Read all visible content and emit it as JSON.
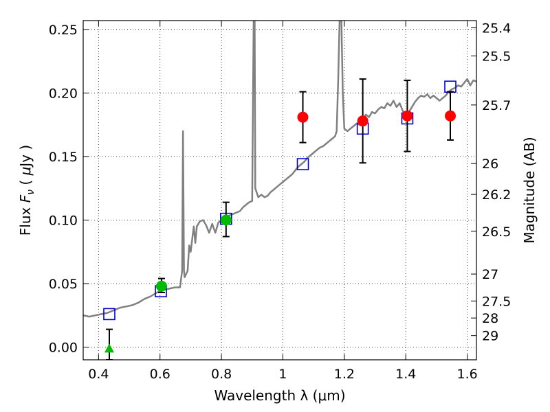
{
  "chart_data": {
    "type": "scatter",
    "xlabel": "Wavelength  λ (μm)",
    "ylabel_parts": [
      "Flux ",
      "F",
      "ν",
      " ( ",
      "μ",
      "Jy )"
    ],
    "y2label": "Magnitude (AB)",
    "xlim": [
      0.35,
      1.63
    ],
    "ylim": [
      -0.01,
      0.257
    ],
    "xticks": [
      0.4,
      0.6,
      0.8,
      1.0,
      1.2,
      1.4,
      1.6
    ],
    "xtick_labels": [
      "0.4",
      "0.6",
      "0.8",
      "1",
      "1.2",
      "1.4",
      "1.6"
    ],
    "yticks": [
      0.0,
      0.05,
      0.1,
      0.15,
      0.2,
      0.25
    ],
    "ytick_labels": [
      "0.00",
      "0.05",
      "0.10",
      "0.15",
      "0.20",
      "0.25"
    ],
    "y2ticks": [
      {
        "flux": 0.2513,
        "label": "25.4"
      },
      {
        "flux": 0.2292,
        "label": "25.5"
      },
      {
        "flux": 0.1906,
        "label": "25.7"
      },
      {
        "flux": 0.1445,
        "label": "26"
      },
      {
        "flux": 0.1202,
        "label": "26.2"
      },
      {
        "flux": 0.0912,
        "label": "26.5"
      },
      {
        "flux": 0.0575,
        "label": "27"
      },
      {
        "flux": 0.0363,
        "label": "27.5"
      },
      {
        "flux": 0.0229,
        "label": "28"
      },
      {
        "flux": 0.0091,
        "label": "29"
      }
    ],
    "grid": true,
    "series": [
      {
        "kind": "line",
        "color": "#808080",
        "points": [
          [
            0.35,
            0.025
          ],
          [
            0.37,
            0.024
          ],
          [
            0.39,
            0.025
          ],
          [
            0.41,
            0.026
          ],
          [
            0.43,
            0.027
          ],
          [
            0.45,
            0.029
          ],
          [
            0.47,
            0.031
          ],
          [
            0.49,
            0.032
          ],
          [
            0.51,
            0.033
          ],
          [
            0.53,
            0.035
          ],
          [
            0.55,
            0.038
          ],
          [
            0.57,
            0.04
          ],
          [
            0.59,
            0.043
          ],
          [
            0.61,
            0.045
          ],
          [
            0.63,
            0.046
          ],
          [
            0.65,
            0.047
          ],
          [
            0.665,
            0.047
          ],
          [
            0.672,
            0.06
          ],
          [
            0.675,
            0.17
          ],
          [
            0.678,
            0.06
          ],
          [
            0.68,
            0.055
          ],
          [
            0.69,
            0.06
          ],
          [
            0.695,
            0.08
          ],
          [
            0.7,
            0.075
          ],
          [
            0.705,
            0.085
          ],
          [
            0.71,
            0.095
          ],
          [
            0.715,
            0.082
          ],
          [
            0.72,
            0.095
          ],
          [
            0.73,
            0.099
          ],
          [
            0.74,
            0.1
          ],
          [
            0.75,
            0.096
          ],
          [
            0.76,
            0.09
          ],
          [
            0.77,
            0.097
          ],
          [
            0.78,
            0.09
          ],
          [
            0.79,
            0.098
          ],
          [
            0.8,
            0.1
          ],
          [
            0.81,
            0.098
          ],
          [
            0.82,
            0.103
          ],
          [
            0.83,
            0.104
          ],
          [
            0.84,
            0.105
          ],
          [
            0.85,
            0.106
          ],
          [
            0.86,
            0.107
          ],
          [
            0.87,
            0.11
          ],
          [
            0.88,
            0.112
          ],
          [
            0.89,
            0.114
          ],
          [
            0.9,
            0.115
          ],
          [
            0.903,
            0.2
          ],
          [
            0.905,
            0.26
          ],
          [
            0.908,
            0.26
          ],
          [
            0.91,
            0.125
          ],
          [
            0.92,
            0.118
          ],
          [
            0.93,
            0.12
          ],
          [
            0.94,
            0.118
          ],
          [
            0.95,
            0.119
          ],
          [
            0.96,
            0.122
          ],
          [
            0.97,
            0.124
          ],
          [
            0.98,
            0.126
          ],
          [
            0.99,
            0.128
          ],
          [
            1.0,
            0.13
          ],
          [
            1.01,
            0.132
          ],
          [
            1.02,
            0.134
          ],
          [
            1.03,
            0.136
          ],
          [
            1.04,
            0.139
          ],
          [
            1.05,
            0.142
          ],
          [
            1.06,
            0.144
          ],
          [
            1.07,
            0.146
          ],
          [
            1.08,
            0.149
          ],
          [
            1.09,
            0.151
          ],
          [
            1.1,
            0.153
          ],
          [
            1.11,
            0.155
          ],
          [
            1.12,
            0.157
          ],
          [
            1.13,
            0.158
          ],
          [
            1.14,
            0.16
          ],
          [
            1.15,
            0.162
          ],
          [
            1.16,
            0.164
          ],
          [
            1.17,
            0.166
          ],
          [
            1.175,
            0.17
          ],
          [
            1.18,
            0.21
          ],
          [
            1.185,
            0.26
          ],
          [
            1.19,
            0.262
          ],
          [
            1.195,
            0.2
          ],
          [
            1.2,
            0.172
          ],
          [
            1.21,
            0.17
          ],
          [
            1.22,
            0.172
          ],
          [
            1.23,
            0.174
          ],
          [
            1.24,
            0.176
          ],
          [
            1.25,
            0.175
          ],
          [
            1.26,
            0.178
          ],
          [
            1.27,
            0.183
          ],
          [
            1.28,
            0.181
          ],
          [
            1.29,
            0.185
          ],
          [
            1.3,
            0.184
          ],
          [
            1.31,
            0.187
          ],
          [
            1.32,
            0.189
          ],
          [
            1.33,
            0.188
          ],
          [
            1.34,
            0.192
          ],
          [
            1.35,
            0.19
          ],
          [
            1.36,
            0.194
          ],
          [
            1.37,
            0.189
          ],
          [
            1.38,
            0.192
          ],
          [
            1.39,
            0.186
          ],
          [
            1.4,
            0.183
          ],
          [
            1.41,
            0.185
          ],
          [
            1.42,
            0.189
          ],
          [
            1.43,
            0.193
          ],
          [
            1.44,
            0.196
          ],
          [
            1.45,
            0.198
          ],
          [
            1.46,
            0.197
          ],
          [
            1.47,
            0.199
          ],
          [
            1.48,
            0.196
          ],
          [
            1.49,
            0.198
          ],
          [
            1.5,
            0.196
          ],
          [
            1.51,
            0.194
          ],
          [
            1.52,
            0.196
          ],
          [
            1.53,
            0.198
          ],
          [
            1.54,
            0.201
          ],
          [
            1.55,
            0.203
          ],
          [
            1.56,
            0.204
          ],
          [
            1.57,
            0.206
          ],
          [
            1.58,
            0.205
          ],
          [
            1.59,
            0.208
          ],
          [
            1.6,
            0.211
          ],
          [
            1.61,
            0.206
          ],
          [
            1.62,
            0.21
          ],
          [
            1.63,
            0.209
          ]
        ]
      },
      {
        "kind": "open-square",
        "color": "#0000cc",
        "points": [
          [
            0.435,
            0.026
          ],
          [
            0.603,
            0.044
          ],
          [
            0.815,
            0.101
          ],
          [
            1.065,
            0.144
          ],
          [
            1.26,
            0.172
          ],
          [
            1.405,
            0.18
          ],
          [
            1.545,
            0.205
          ]
        ]
      },
      {
        "kind": "errorbar",
        "color": "#000000",
        "points": [
          {
            "x": 0.435,
            "lo": -0.01,
            "hi": 0.014
          },
          {
            "x": 0.605,
            "lo": 0.043,
            "hi": 0.054
          },
          {
            "x": 0.815,
            "lo": 0.087,
            "hi": 0.114
          },
          {
            "x": 1.065,
            "lo": 0.161,
            "hi": 0.201
          },
          {
            "x": 1.26,
            "lo": 0.145,
            "hi": 0.211
          },
          {
            "x": 1.405,
            "lo": 0.154,
            "hi": 0.21
          },
          {
            "x": 1.545,
            "lo": 0.163,
            "hi": 0.201
          }
        ]
      },
      {
        "kind": "triangle",
        "color": "#00bb00",
        "points": [
          [
            0.435,
            -0.001
          ]
        ]
      },
      {
        "kind": "circle",
        "color": "#00bb00",
        "points": [
          [
            0.605,
            0.048
          ],
          [
            0.815,
            0.1
          ]
        ]
      },
      {
        "kind": "circle",
        "color": "#ff0000",
        "points": [
          [
            1.065,
            0.181
          ],
          [
            1.26,
            0.178
          ],
          [
            1.405,
            0.182
          ],
          [
            1.545,
            0.182
          ]
        ]
      }
    ]
  }
}
